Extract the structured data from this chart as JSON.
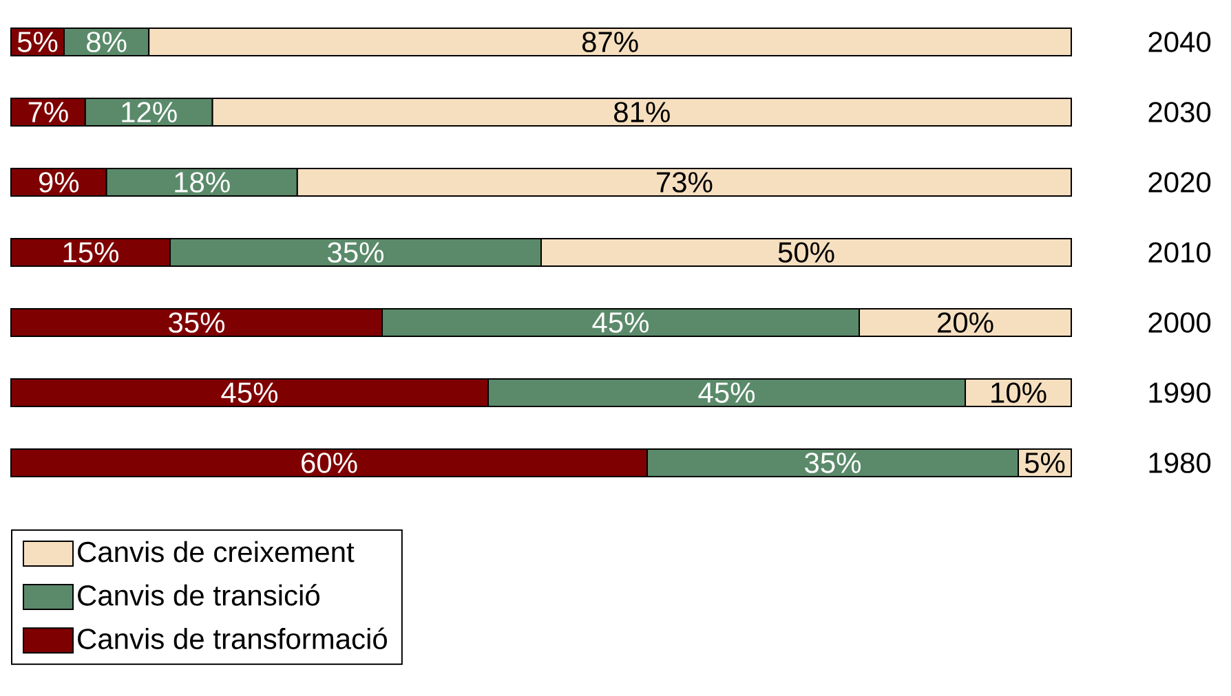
{
  "chart_data": {
    "type": "bar",
    "orientation": "horizontal",
    "stacked": true,
    "legend": "bottom left",
    "xlim": [
      0,
      100
    ],
    "tick_labels": "y",
    "categories": [
      "2040",
      "2030",
      "2020",
      "2010",
      "2000",
      "1990",
      "1980"
    ],
    "series": [
      {
        "name": "Canvis de transformació",
        "color": "#7f0000",
        "values": [
          5,
          7,
          9,
          15,
          35,
          45,
          60
        ],
        "value_labels": [
          "5%",
          "7%",
          "9%",
          "15%",
          "35%",
          "45%",
          "60%"
        ]
      },
      {
        "name": "Canvis de transició",
        "color": "#5a8a6a",
        "values": [
          8,
          12,
          18,
          35,
          45,
          45,
          35
        ],
        "value_labels": [
          "8%",
          "12%",
          "18%",
          "35%",
          "45%",
          "45%",
          "35%"
        ]
      },
      {
        "name": "Canvis de creixement",
        "color": "#f6dfbf",
        "values": [
          87,
          81,
          73,
          50,
          20,
          10,
          5
        ],
        "value_labels": [
          "87%",
          "81%",
          "73%",
          "50%",
          "20%",
          "10%",
          "5%"
        ]
      }
    ]
  }
}
